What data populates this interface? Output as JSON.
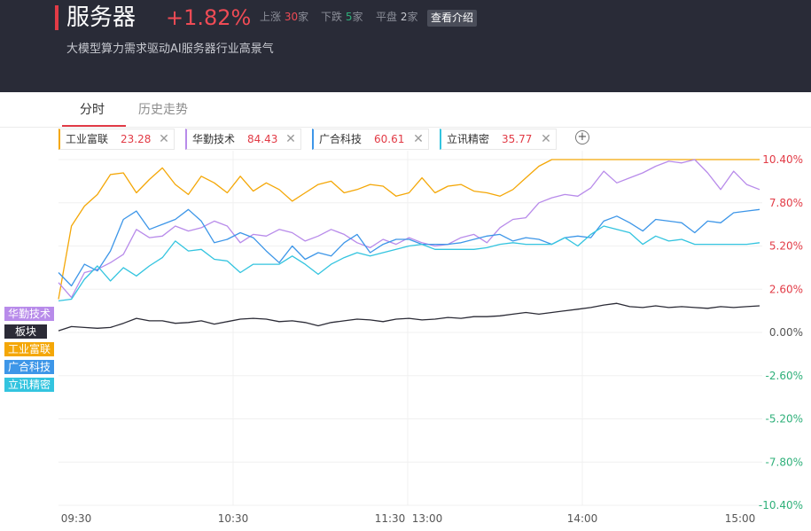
{
  "header": {
    "title": "服务器",
    "change": "+1.82%",
    "up_label": "上涨",
    "up_count": "30",
    "down_label": "下跌",
    "down_count": "5",
    "flat_label": "平盘",
    "flat_count": "2",
    "unit": "家",
    "intro_button": "查看介绍",
    "subtitle": "大模型算力需求驱动AI服务器行业高景气"
  },
  "tabs": [
    {
      "label": "分时",
      "active": true
    },
    {
      "label": "历史走势",
      "active": false
    }
  ],
  "stocks": [
    {
      "name": "工业富联",
      "value": "23.28",
      "color": "#f4a707"
    },
    {
      "name": "华勤技术",
      "value": "84.43",
      "color": "#b88bea"
    },
    {
      "name": "广合科技",
      "value": "60.61",
      "color": "#3d96e8"
    },
    {
      "name": "立讯精密",
      "value": "35.77",
      "color": "#33c4df"
    }
  ],
  "add_icon": "plus-circle-icon",
  "close_icon": "close-icon",
  "legend": [
    {
      "label": "华勤技术",
      "color": "#b88bea"
    },
    {
      "label": "板块",
      "color": "#2b2b36"
    },
    {
      "label": "工业富联",
      "color": "#f4a707"
    },
    {
      "label": "广合科技",
      "color": "#3d96e8"
    },
    {
      "label": "立讯精密",
      "color": "#33c4df"
    }
  ],
  "chart_data": {
    "type": "line",
    "x_ticks": [
      "09:30",
      "10:30",
      "11:30",
      "13:00",
      "14:00",
      "15:00"
    ],
    "y_ticks": [
      "10.40%",
      "7.80%",
      "5.20%",
      "2.60%",
      "0.00%",
      "-2.60%",
      "-5.20%",
      "-7.80%",
      "-10.40%"
    ],
    "ylim": [
      -10.4,
      10.4
    ],
    "up_color": "#e23b46",
    "zero_color": "#555555",
    "down_color": "#2fb07a",
    "series": [
      {
        "name": "工业富联",
        "color": "#f4a707",
        "values": [
          2.0,
          6.4,
          7.6,
          8.3,
          9.5,
          9.6,
          8.4,
          9.2,
          9.9,
          8.9,
          8.3,
          9.4,
          9.0,
          8.4,
          9.4,
          8.5,
          9.0,
          8.6,
          7.9,
          8.4,
          8.9,
          9.1,
          8.4,
          8.6,
          8.9,
          8.8,
          8.2,
          8.4,
          9.3,
          8.4,
          8.8,
          8.9,
          8.5,
          8.4,
          8.2,
          8.6,
          9.3,
          10.0,
          10.4,
          10.4,
          10.4,
          10.4,
          10.4,
          10.4,
          10.4,
          10.4,
          10.4,
          10.4,
          10.4,
          10.4,
          10.4,
          10.4,
          10.4,
          10.4,
          10.4
        ]
      },
      {
        "name": "华勤技术",
        "color": "#b88bea",
        "values": [
          3.0,
          2.1,
          3.6,
          3.8,
          4.2,
          4.7,
          6.2,
          5.7,
          5.8,
          6.4,
          6.1,
          6.3,
          6.7,
          6.4,
          5.4,
          5.9,
          5.8,
          6.2,
          6.0,
          5.5,
          5.8,
          6.2,
          5.9,
          5.4,
          5.1,
          5.6,
          5.3,
          5.7,
          5.4,
          5.2,
          5.3,
          5.7,
          5.9,
          5.4,
          6.3,
          6.8,
          6.9,
          7.8,
          8.1,
          8.3,
          8.2,
          8.7,
          9.7,
          9.0,
          9.3,
          9.6,
          10.0,
          10.3,
          10.2,
          10.4,
          9.6,
          8.6,
          9.7,
          8.9,
          8.6
        ]
      },
      {
        "name": "广合科技",
        "color": "#3d96e8",
        "values": [
          3.6,
          2.8,
          4.1,
          3.7,
          4.9,
          6.8,
          7.3,
          6.2,
          6.5,
          6.8,
          7.4,
          6.7,
          5.4,
          5.6,
          6.0,
          5.7,
          4.9,
          4.2,
          5.2,
          4.4,
          4.8,
          4.6,
          5.4,
          5.9,
          4.8,
          5.3,
          5.6,
          5.6,
          5.3,
          5.3,
          5.3,
          5.4,
          5.6,
          5.8,
          5.9,
          5.5,
          5.7,
          5.6,
          5.3,
          5.7,
          5.8,
          5.7,
          6.7,
          7.0,
          6.6,
          6.1,
          6.8,
          6.7,
          6.6,
          6.0,
          6.7,
          6.6,
          7.2,
          7.3,
          7.4
        ]
      },
      {
        "name": "立讯精密",
        "color": "#33c4df",
        "values": [
          1.9,
          2.0,
          3.2,
          4.0,
          3.1,
          3.9,
          3.4,
          4.0,
          4.5,
          5.5,
          4.9,
          5.0,
          4.4,
          4.3,
          3.6,
          4.1,
          4.1,
          4.1,
          4.6,
          4.1,
          3.5,
          4.1,
          4.5,
          4.8,
          4.6,
          4.8,
          5.0,
          5.2,
          5.3,
          5.0,
          5.0,
          5.0,
          5.0,
          5.1,
          5.3,
          5.4,
          5.3,
          5.3,
          5.3,
          5.7,
          5.2,
          5.9,
          6.4,
          6.2,
          6.0,
          5.3,
          5.8,
          5.5,
          5.6,
          5.3,
          5.3,
          5.3,
          5.3,
          5.3,
          5.4
        ]
      },
      {
        "name": "板块",
        "color": "#2b2b36",
        "values": [
          0.1,
          0.35,
          0.3,
          0.25,
          0.3,
          0.55,
          0.85,
          0.7,
          0.7,
          0.55,
          0.6,
          0.7,
          0.5,
          0.65,
          0.8,
          0.85,
          0.8,
          0.65,
          0.7,
          0.6,
          0.4,
          0.6,
          0.7,
          0.8,
          0.75,
          0.65,
          0.8,
          0.85,
          0.75,
          0.8,
          0.9,
          0.85,
          0.95,
          0.95,
          1.0,
          1.1,
          1.2,
          1.1,
          1.2,
          1.3,
          1.4,
          1.5,
          1.65,
          1.75,
          1.55,
          1.5,
          1.6,
          1.5,
          1.55,
          1.5,
          1.45,
          1.55,
          1.5,
          1.55,
          1.6
        ]
      }
    ]
  }
}
